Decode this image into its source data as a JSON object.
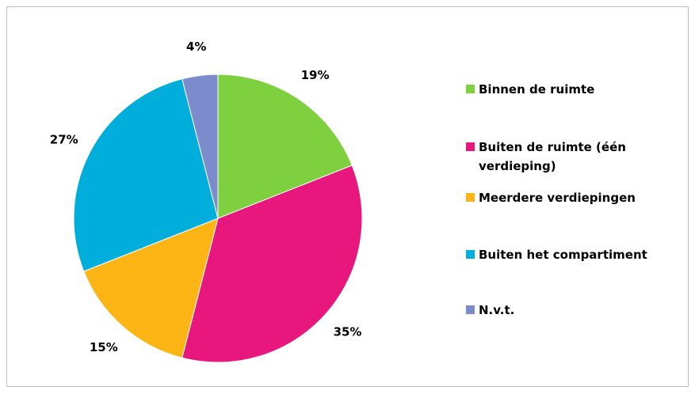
{
  "chart_data": {
    "type": "pie",
    "categories": [
      "Binnen de ruimte",
      "Buiten de ruimte (één verdieping)",
      "Meerdere verdiepingen",
      "Buiten het compartiment",
      "N.v.t."
    ],
    "values": [
      19,
      35,
      15,
      27,
      4
    ],
    "value_labels": [
      "19%",
      "35%",
      "15%",
      "27%",
      "4%"
    ],
    "colors": [
      "#7ed03e",
      "#e8177d",
      "#fdb515",
      "#00aedb",
      "#7b8bcc"
    ],
    "legend": "right"
  }
}
